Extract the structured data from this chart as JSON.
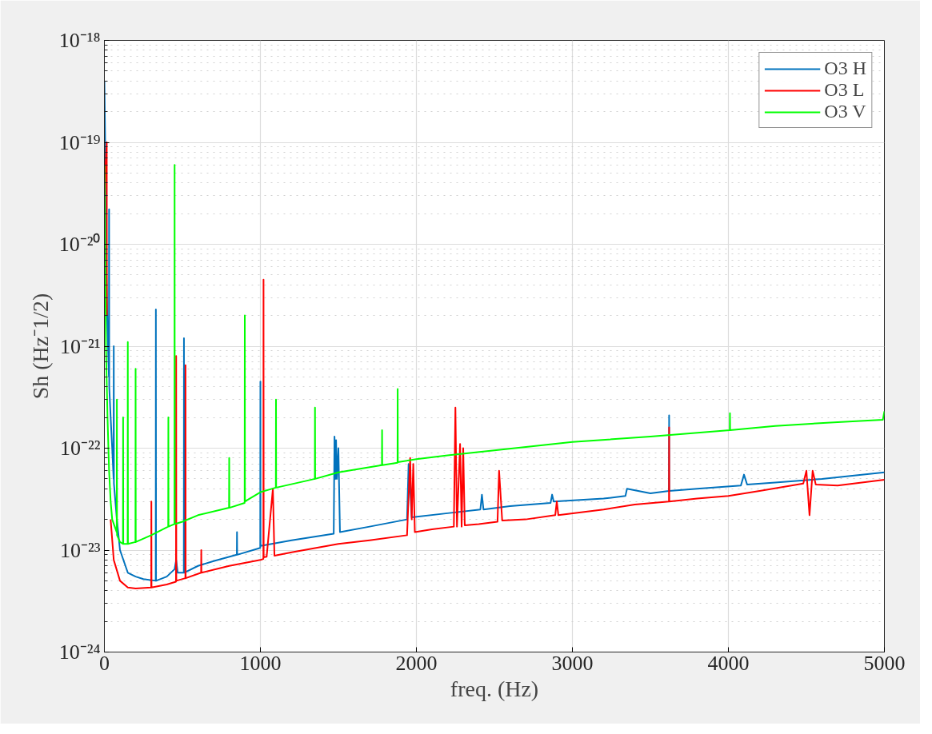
{
  "chart_data": {
    "type": "line",
    "xlabel": "freq. (Hz)",
    "ylabel": "Sh (Hz⁻1/2)",
    "xlim": [
      0,
      5000
    ],
    "xticks": [
      0,
      1000,
      2000,
      3000,
      4000,
      5000
    ],
    "ylim": [
      1e-24,
      1e-18
    ],
    "yticks": [
      {
        "value": 1e-24,
        "label": "10⁻²⁴"
      },
      {
        "value": 1e-23,
        "label": "10⁻²³"
      },
      {
        "value": 1e-22,
        "label": "10⁻²²"
      },
      {
        "value": 1e-21,
        "label": "10⁻²¹"
      },
      {
        "value": 1e-20,
        "label": "10⁻²⁰"
      },
      {
        "value": 1e-19,
        "label": "10⁻¹⁹"
      },
      {
        "value": 1e-18,
        "label": "10⁻¹⁸"
      }
    ],
    "log": "y",
    "grid": true,
    "legend": "top right",
    "line_style": "solid",
    "marker": "none",
    "series": [
      {
        "name": "O3 H",
        "color": "#0072bd",
        "x": [
          0,
          5,
          10,
          20,
          29,
          30,
          31,
          40,
          50,
          59,
          60,
          61,
          80,
          100,
          150,
          200,
          250,
          329,
          330,
          331,
          400,
          450,
          460,
          470,
          509,
          510,
          511,
          600,
          700,
          849,
          850,
          851,
          999,
          1000,
          1001,
          1200,
          1470,
          1475,
          1480,
          1485,
          1490,
          1500,
          1510,
          1700,
          1940,
          1950,
          1960,
          1970,
          2200,
          2410,
          2420,
          2430,
          2600,
          2860,
          2870,
          2880,
          3200,
          3340,
          3350,
          3500,
          3619,
          3620,
          3621,
          3800,
          4080,
          4100,
          4120,
          4300,
          4600,
          5000
        ],
        "values": [
          4e-19,
          1e-19,
          8e-21,
          1.5e-21,
          5e-22,
          2.2e-20,
          4e-22,
          2e-22,
          1e-22,
          5e-23,
          1e-21,
          4.5e-23,
          2e-23,
          1e-23,
          6e-24,
          5.5e-24,
          5.2e-24,
          5e-24,
          2.3e-21,
          5e-24,
          5.5e-24,
          6.5e-24,
          8e-24,
          6e-24,
          6e-24,
          1.2e-21,
          6e-24,
          7e-24,
          7.8e-24,
          9e-24,
          1.5e-23,
          9e-24,
          1.05e-23,
          4.5e-22,
          1.1e-23,
          1.25e-23,
          1.45e-23,
          1.3e-22,
          5e-23,
          1.2e-22,
          5e-23,
          1e-22,
          1.5e-23,
          1.7e-23,
          2e-23,
          7e-23,
          4e-23,
          2.1e-23,
          2.3e-23,
          2.5e-23,
          3.5e-23,
          2.5e-23,
          2.7e-23,
          2.9e-23,
          3.5e-23,
          3e-23,
          3.2e-23,
          3.4e-23,
          4e-23,
          3.6e-23,
          3.8e-23,
          2.1e-22,
          3.8e-23,
          4e-23,
          4.3e-23,
          5.5e-23,
          4.4e-23,
          4.6e-23,
          5e-23,
          5.8e-23
        ]
      },
      {
        "name": "O3 L",
        "color": "#ff0000",
        "x": [
          0,
          5,
          15,
          16,
          25,
          40,
          60,
          100,
          150,
          200,
          300,
          301,
          302,
          400,
          459,
          460,
          461,
          519,
          520,
          521,
          620,
          621,
          622,
          800,
          1000,
          1019,
          1020,
          1021,
          1040,
          1080,
          1090,
          1200,
          1500,
          1700,
          1940,
          1960,
          1970,
          1980,
          1990,
          2100,
          2240,
          2250,
          2260,
          2280,
          2290,
          2300,
          2310,
          2400,
          2520,
          2530,
          2550,
          2700,
          2890,
          2900,
          2910,
          3200,
          3400,
          3619,
          3620,
          3621,
          3800,
          4000,
          4200,
          4480,
          4500,
          4520,
          4540,
          4560,
          4700,
          5000
        ],
        "values": [
          2e-20,
          5e-20,
          1e-19,
          2e-21,
          null,
          2e-23,
          8e-24,
          5e-24,
          4.3e-24,
          4.2e-24,
          4.3e-24,
          3e-23,
          4.3e-24,
          4.6e-24,
          4.9e-24,
          8e-22,
          5e-24,
          5.3e-24,
          6.5e-22,
          5.3e-24,
          6e-24,
          1e-23,
          6e-24,
          7e-24,
          8e-24,
          8.2e-24,
          4.5e-21,
          8.5e-24,
          8.6e-24,
          4e-23,
          8.8e-24,
          9.5e-24,
          1.15e-23,
          1.25e-23,
          1.4e-23,
          8e-23,
          2e-23,
          7e-23,
          1.5e-23,
          1.6e-23,
          1.7e-23,
          2.5e-22,
          1.7e-23,
          1.1e-22,
          1.7e-23,
          1e-22,
          1.75e-23,
          1.8e-23,
          1.9e-23,
          6e-23,
          1.95e-23,
          2e-23,
          2.2e-23,
          3e-23,
          2.2e-23,
          2.5e-23,
          2.8e-23,
          3e-23,
          1.6e-22,
          3e-23,
          3.2e-23,
          3.4e-23,
          3.8e-23,
          4.5e-23,
          6e-23,
          2.2e-23,
          6e-23,
          4.4e-23,
          4.3e-23,
          4.9e-23
        ]
      },
      {
        "name": "O3 V",
        "color": "#00ff00",
        "x": [
          0,
          5,
          10,
          20,
          30,
          40,
          50,
          79,
          80,
          81,
          100,
          119,
          120,
          121,
          149,
          150,
          151,
          199,
          200,
          201,
          300,
          409,
          410,
          411,
          449,
          450,
          451,
          500,
          600,
          799,
          800,
          801,
          899,
          900,
          901,
          1000,
          1099,
          1100,
          1101,
          1300,
          1349,
          1350,
          1351,
          1500,
          1779,
          1780,
          1781,
          1879,
          1880,
          1881,
          2000,
          2200,
          2500,
          3000,
          3500,
          4009,
          4010,
          4011,
          4300,
          4700,
          4990,
          5000
        ],
        "values": [
          6e-20,
          8e-21,
          1e-21,
          2e-22,
          6e-23,
          3e-23,
          2e-23,
          1.5e-23,
          3e-22,
          1.4e-23,
          1.2e-23,
          1.15e-23,
          2e-22,
          1.15e-23,
          1.15e-23,
          1.1e-21,
          1.15e-23,
          1.2e-23,
          6e-22,
          1.2e-23,
          1.4e-23,
          1.7e-23,
          2e-22,
          1.7e-23,
          1.8e-23,
          6e-20,
          1.8e-23,
          1.9e-23,
          2.2e-23,
          2.6e-23,
          8e-23,
          2.6e-23,
          2.9e-23,
          2e-21,
          3e-23,
          3.7e-23,
          4.1e-23,
          3e-22,
          4.1e-23,
          4.8e-23,
          5e-23,
          2.5e-22,
          5e-23,
          5.8e-23,
          6.8e-23,
          1.5e-22,
          6.8e-23,
          7.2e-23,
          3.8e-22,
          7.3e-23,
          7.8e-23,
          8.5e-23,
          9.5e-23,
          1.15e-22,
          1.3e-22,
          1.5e-22,
          2.2e-22,
          1.5e-22,
          1.65e-22,
          1.8e-22,
          1.9e-22,
          2.3e-22
        ]
      }
    ]
  }
}
